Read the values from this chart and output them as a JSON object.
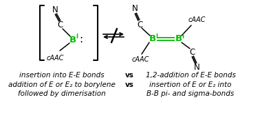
{
  "bg_color": "#ffffff",
  "text_color": "#000000",
  "green_color": "#00bb00",
  "line1_left": "insertion into E-E bonds",
  "line1_vs": "vs",
  "line1_right": "1,2-addition of E-E bonds",
  "line2_left": "addition of E or E₂ to borylene",
  "line2_vs": "vs",
  "line2_right": "insertion of E or E₂ into",
  "line3_left": "followed by dimerisation",
  "line3_right": "B-B pi- and sigma-bonds"
}
